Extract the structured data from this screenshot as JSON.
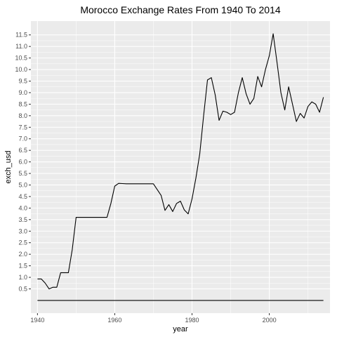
{
  "chart_data": {
    "type": "line",
    "title": "Morocco Exchange Rates From 1940 To 2014",
    "xlabel": "year",
    "ylabel": "exch_usd",
    "xlim": [
      1938.3,
      2015.7
    ],
    "ylim": [
      -0.55,
      12.1
    ],
    "x_ticks": [
      1940,
      1960,
      1980,
      2000
    ],
    "x_tick_labels": [
      "1940",
      "1960",
      "1980",
      "2000"
    ],
    "y_ticks": [
      0.5,
      1.0,
      1.5,
      2.0,
      2.5,
      3.0,
      3.5,
      4.0,
      4.5,
      5.0,
      5.5,
      6.0,
      6.5,
      7.0,
      7.5,
      8.0,
      8.5,
      9.0,
      9.5,
      10.0,
      10.5,
      11.0,
      11.5
    ],
    "y_tick_labels": [
      "0.5",
      "1.0",
      "1.5",
      "2.0",
      "2.5",
      "3.0",
      "3.5",
      "4.0",
      "4.5",
      "5.0",
      "5.5",
      "6.0",
      "6.5",
      "7.0",
      "7.5",
      "8.0",
      "8.5",
      "9.0",
      "9.5",
      "10.0",
      "10.5",
      "11.0",
      "11.5"
    ],
    "grid": true,
    "background": "#ebebeb",
    "grid_color": "#ffffff",
    "series": [
      {
        "color": "#000000",
        "x": [
          1940,
          1941,
          1942,
          1943,
          1944,
          1945,
          1946,
          1947,
          1948,
          1949,
          1950,
          1951,
          1952,
          1953,
          1954,
          1955,
          1956,
          1957,
          1958,
          1959,
          1960,
          1961,
          1962,
          1963,
          1964,
          1965,
          1966,
          1967,
          1968,
          1969,
          1970,
          1971,
          1972,
          1973,
          1974,
          1975,
          1976,
          1977,
          1978,
          1979,
          1980,
          1981,
          1982,
          1983,
          1984,
          1985,
          1986,
          1987,
          1988,
          1989,
          1990,
          1991,
          1992,
          1993,
          1994,
          1995,
          1996,
          1997,
          1998,
          1999,
          2000,
          2001,
          2002,
          2003,
          2004,
          2005,
          2006,
          2007,
          2008,
          2009,
          2010,
          2011,
          2012,
          2013,
          2014
        ],
        "y": [
          0.93,
          0.93,
          0.75,
          0.5,
          0.57,
          0.57,
          1.2,
          1.2,
          1.2,
          2.2,
          3.6,
          3.6,
          3.6,
          3.6,
          3.6,
          3.6,
          3.6,
          3.6,
          3.6,
          4.2,
          4.95,
          5.07,
          5.06,
          5.05,
          5.05,
          5.05,
          5.05,
          5.05,
          5.05,
          5.05,
          5.05,
          4.8,
          4.55,
          3.9,
          4.15,
          3.85,
          4.2,
          4.3,
          3.92,
          3.75,
          4.4,
          5.3,
          6.35,
          8.0,
          9.55,
          9.65,
          8.9,
          7.8,
          8.2,
          8.15,
          8.05,
          8.15,
          9.0,
          9.65,
          8.95,
          8.5,
          8.75,
          9.7,
          9.25,
          10.0,
          10.6,
          11.55,
          10.3,
          9.0,
          8.25,
          9.25,
          8.5,
          7.75,
          8.1,
          7.9,
          8.4,
          8.6,
          8.5,
          8.15,
          8.8
        ]
      },
      {
        "color": "#000000",
        "x": [
          1940,
          2014
        ],
        "y": [
          0,
          0
        ]
      }
    ]
  }
}
